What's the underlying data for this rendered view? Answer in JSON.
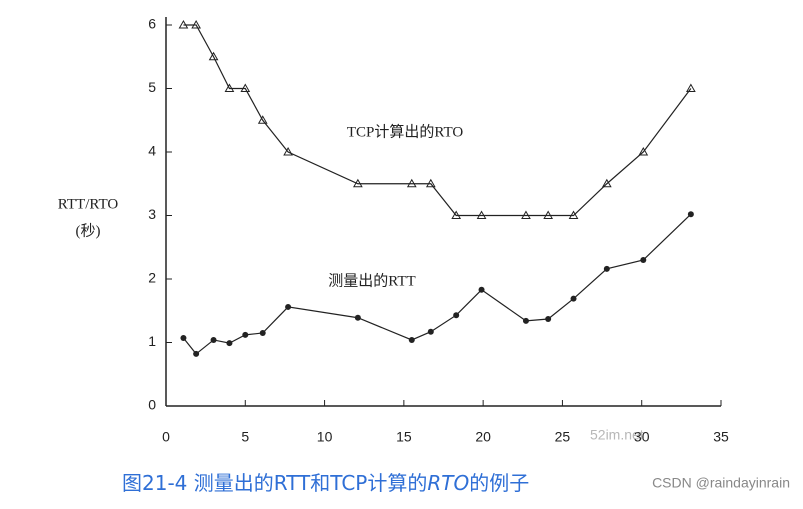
{
  "chart_data": {
    "type": "line",
    "y_axis_label": [
      "RTT/RTO",
      "(秒)"
    ],
    "annotations": [
      "TCP计算出的RTO",
      "测量出的RTT"
    ],
    "caption": [
      "图21-4 测量出的RTT和TCP计算的",
      "RTO",
      "的例子"
    ],
    "watermark": [
      "52im.net",
      "CSDN @raindayinrain"
    ],
    "xlim": [
      0,
      35
    ],
    "xticks": [
      0,
      5,
      10,
      15,
      20,
      25,
      30,
      35
    ],
    "ylim": [
      0,
      6
    ],
    "yticks": [
      0,
      1,
      2,
      3,
      4,
      5,
      6
    ],
    "series": [
      {
        "name": "TCP计算出的RTO",
        "marker": "triangle",
        "color": "#222222",
        "x": [
          1.1,
          1.9,
          3,
          4,
          5,
          6.1,
          7.7,
          12.1,
          15.5,
          16.7,
          18.3,
          19.9,
          22.7,
          24.1,
          25.7,
          27.8,
          30.1,
          33.1
        ],
        "values": [
          6,
          6,
          5.5,
          5,
          5,
          4.5,
          4,
          3.5,
          3.5,
          3.5,
          3,
          3,
          3,
          3,
          3,
          3.5,
          4,
          5
        ]
      },
      {
        "name": "测量出的RTT",
        "marker": "circle",
        "color": "#222222",
        "x": [
          1.1,
          1.9,
          3,
          4,
          5,
          6.1,
          7.7,
          12.1,
          15.5,
          16.7,
          18.3,
          19.9,
          22.7,
          24.1,
          25.7,
          27.8,
          30.1,
          33.1
        ],
        "values": [
          1.07,
          0.82,
          1.04,
          0.99,
          1.12,
          1.15,
          1.56,
          1.39,
          1.04,
          1.17,
          1.43,
          1.83,
          1.34,
          1.37,
          1.69,
          2.16,
          2.3,
          3.02
        ]
      }
    ]
  }
}
